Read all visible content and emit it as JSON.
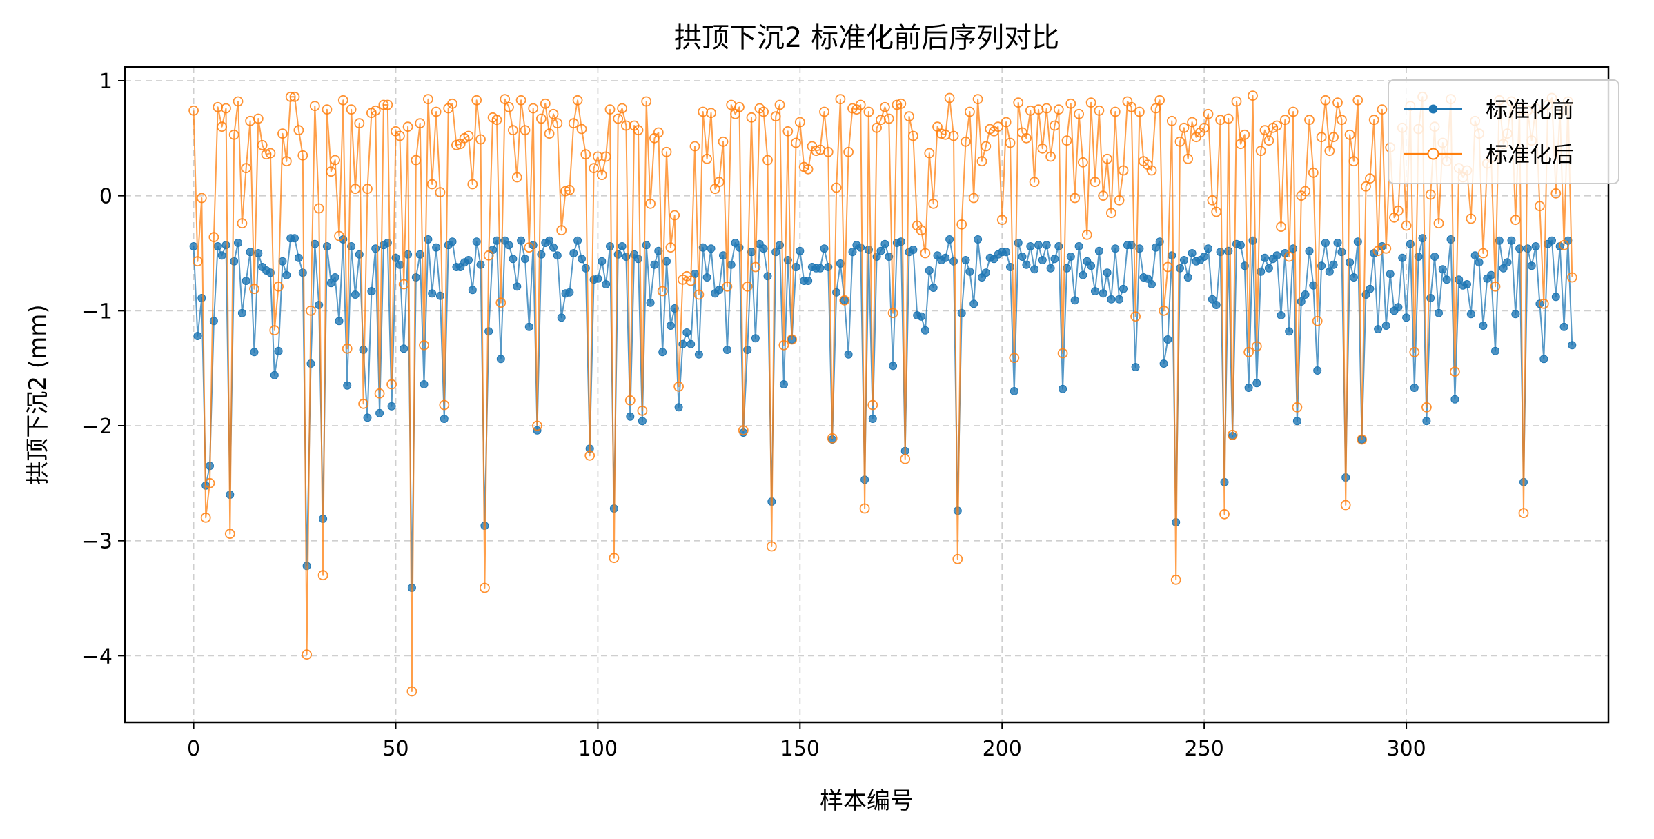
{
  "chart_data": {
    "type": "line",
    "title": "拱顶下沉2 标准化前后序列对比",
    "xlabel": "样本编号",
    "ylabel": "拱顶下沉2 (mm)",
    "xlim": [
      -17,
      350
    ],
    "ylim": [
      -4.58,
      1.12
    ],
    "xticks": [
      0,
      50,
      100,
      150,
      200,
      250,
      300
    ],
    "yticks": [
      -4,
      -3,
      -2,
      -1,
      0,
      1
    ],
    "grid": true,
    "legend_position": "top-right",
    "series": [
      {
        "name": "标准化前",
        "color": "#1f77b4",
        "marker": "filled-circle",
        "values": [
          -0.44,
          -1.22,
          -0.89,
          -2.52,
          -2.35,
          -1.09,
          -0.44,
          -0.52,
          -0.43,
          -2.6,
          -0.57,
          -0.41,
          -1.02,
          -0.74,
          -0.49,
          -1.36,
          -0.5,
          -0.62,
          -0.65,
          -0.67,
          -1.56,
          -1.35,
          -0.57,
          -0.69,
          -0.37,
          -0.37,
          -0.54,
          -0.67,
          -3.22,
          -1.46,
          -0.42,
          -0.95,
          -2.81,
          -0.44,
          -0.76,
          -0.71,
          -1.09,
          -0.38,
          -1.65,
          -0.44,
          -0.86,
          -0.51,
          -1.34,
          -1.93,
          -0.83,
          -0.46,
          -1.89,
          -0.43,
          -0.41,
          -1.83,
          -0.54,
          -0.6,
          -1.33,
          -0.51,
          -3.41,
          -0.71,
          -0.51,
          -1.64,
          -0.38,
          -0.85,
          -0.45,
          -0.87,
          -1.94,
          -0.43,
          -0.4,
          -0.62,
          -0.62,
          -0.58,
          -0.56,
          -0.82,
          -0.4,
          -0.6,
          -2.87,
          -1.18,
          -0.47,
          -0.39,
          -1.42,
          -0.39,
          -0.43,
          -0.55,
          -0.79,
          -0.39,
          -0.55,
          -1.14,
          -0.43,
          -2.04,
          -0.51,
          -0.41,
          -0.39,
          -0.45,
          -0.52,
          -1.06,
          -0.85,
          -0.84,
          -0.5,
          -0.39,
          -0.55,
          -0.63,
          -2.2,
          -0.73,
          -0.72,
          -0.57,
          -0.77,
          -0.44,
          -2.72,
          -0.51,
          -0.44,
          -0.53,
          -1.92,
          -0.51,
          -0.55,
          -1.96,
          -0.43,
          -0.93,
          -0.6,
          -0.48,
          -1.36,
          -0.57,
          -1.13,
          -0.98,
          -1.84,
          -1.29,
          -1.19,
          -1.29,
          -0.68,
          -1.38,
          -0.45,
          -0.71,
          -0.46,
          -0.85,
          -0.82,
          -0.52,
          -1.34,
          -0.6,
          -0.41,
          -0.45,
          -2.06,
          -1.34,
          -0.49,
          -1.24,
          -0.42,
          -0.46,
          -0.7,
          -2.66,
          -0.49,
          -0.43,
          -1.64,
          -0.56,
          -1.25,
          -0.62,
          -0.48,
          -0.74,
          -0.74,
          -0.62,
          -0.63,
          -0.63,
          -0.46,
          -0.62,
          -2.12,
          -0.84,
          -0.59,
          -0.91,
          -1.38,
          -0.49,
          -0.43,
          -0.45,
          -2.47,
          -0.47,
          -1.94,
          -0.53,
          -0.48,
          -0.42,
          -0.53,
          -1.48,
          -0.41,
          -0.4,
          -2.22,
          -0.49,
          -0.47,
          -1.04,
          -1.05,
          -1.17,
          -0.65,
          -0.8,
          -0.52,
          -0.56,
          -0.54,
          -0.38,
          -0.57,
          -2.74,
          -1.02,
          -0.56,
          -0.66,
          -0.94,
          -0.38,
          -0.71,
          -0.67,
          -0.54,
          -0.55,
          -0.51,
          -0.49,
          -0.49,
          -0.62,
          -1.7,
          -0.41,
          -0.53,
          -0.6,
          -0.44,
          -0.64,
          -0.43,
          -0.56,
          -0.43,
          -0.63,
          -0.55,
          -0.44,
          -1.68,
          -0.63,
          -0.53,
          -0.91,
          -0.44,
          -0.69,
          -0.57,
          -0.61,
          -0.83,
          -0.48,
          -0.85,
          -0.67,
          -0.9,
          -0.46,
          -0.9,
          -0.81,
          -0.43,
          -0.43,
          -1.49,
          -0.46,
          -0.71,
          -0.72,
          -0.77,
          -0.45,
          -0.4,
          -1.46,
          -1.25,
          -0.52,
          -2.84,
          -0.63,
          -0.56,
          -0.71,
          -0.5,
          -0.57,
          -0.56,
          -0.53,
          -0.46,
          -0.9,
          -0.95,
          -0.49,
          -2.49,
          -0.48,
          -2.09,
          -0.42,
          -0.43,
          -0.61,
          -1.67,
          -0.39,
          -1.63,
          -0.66,
          -0.54,
          -0.63,
          -0.55,
          -0.52,
          -1.04,
          -0.5,
          -1.18,
          -0.46,
          -1.96,
          -0.92,
          -0.86,
          -0.48,
          -0.78,
          -1.52,
          -0.61,
          -0.41,
          -0.66,
          -0.6,
          -0.41,
          -0.49,
          -2.45,
          -0.58,
          -0.71,
          -0.4,
          -2.12,
          -0.86,
          -0.81,
          -0.5,
          -1.16,
          -0.44,
          -1.13,
          -0.68,
          -1.0,
          -0.97,
          -0.54,
          -1.06,
          -0.42,
          -1.67,
          -0.53,
          -0.37,
          -1.96,
          -0.89,
          -0.53,
          -1.02,
          -0.64,
          -0.73,
          -0.38,
          -1.77,
          -0.73,
          -0.78,
          -0.77,
          -1.03,
          -0.52,
          -0.58,
          -1.13,
          -0.72,
          -0.69,
          -1.35,
          -0.39,
          -0.63,
          -0.58,
          -0.39,
          -1.03,
          -0.46,
          -2.49,
          -0.46,
          -0.61,
          -0.44,
          -0.94,
          -1.42,
          -0.42,
          -0.39,
          -0.88,
          -0.44,
          -1.14,
          -0.39,
          -1.3
        ]
      },
      {
        "name": "标准化后",
        "color": "#ff7f0e",
        "marker": "hollow-circle",
        "values": [
          0.74,
          -0.57,
          -0.02,
          -2.8,
          -2.5,
          -0.36,
          0.77,
          0.6,
          0.76,
          -2.94,
          0.53,
          0.82,
          -0.24,
          0.24,
          0.65,
          -0.81,
          0.67,
          0.44,
          0.36,
          0.37,
          -1.17,
          -0.79,
          0.54,
          0.3,
          0.86,
          0.86,
          0.57,
          0.35,
          -3.99,
          -1.0,
          0.78,
          -0.11,
          -3.3,
          0.75,
          0.21,
          0.31,
          -0.35,
          0.83,
          -1.33,
          0.75,
          0.06,
          0.63,
          -1.81,
          0.06,
          0.72,
          0.74,
          -1.72,
          0.79,
          0.79,
          -1.64,
          0.56,
          0.52,
          -0.77,
          0.6,
          -4.31,
          0.31,
          0.63,
          -1.3,
          0.84,
          0.1,
          0.73,
          0.03,
          -1.82,
          0.76,
          0.8,
          0.44,
          0.45,
          0.5,
          0.52,
          0.1,
          0.83,
          0.49,
          -3.41,
          -0.52,
          0.68,
          0.66,
          -0.93,
          0.84,
          0.77,
          0.57,
          0.16,
          0.83,
          0.57,
          -0.45,
          0.76,
          -2.0,
          0.67,
          0.8,
          0.54,
          0.71,
          0.63,
          -0.3,
          0.04,
          0.05,
          0.63,
          0.83,
          0.58,
          0.36,
          -2.26,
          0.24,
          0.34,
          0.18,
          0.34,
          0.75,
          -3.15,
          0.67,
          0.76,
          0.61,
          -1.78,
          0.61,
          0.57,
          -1.87,
          0.82,
          -0.07,
          0.5,
          0.55,
          -0.83,
          0.38,
          -0.45,
          -0.17,
          -1.66,
          -0.73,
          -0.7,
          -0.74,
          0.43,
          -0.86,
          0.73,
          0.32,
          0.72,
          0.06,
          0.12,
          0.47,
          -0.79,
          0.79,
          0.71,
          0.77,
          -2.04,
          -0.79,
          0.68,
          -0.62,
          0.76,
          0.73,
          0.31,
          -3.05,
          0.69,
          0.79,
          -1.3,
          0.56,
          -1.25,
          0.46,
          0.64,
          0.25,
          0.23,
          0.43,
          0.39,
          0.4,
          0.73,
          0.38,
          -2.11,
          0.07,
          0.84,
          -0.91,
          0.38,
          0.76,
          0.75,
          0.79,
          -2.72,
          0.73,
          -1.82,
          0.59,
          0.66,
          0.77,
          0.67,
          -1.02,
          0.79,
          0.8,
          -2.29,
          0.69,
          0.52,
          -0.26,
          -0.3,
          -0.5,
          0.37,
          -0.07,
          0.6,
          0.54,
          0.53,
          0.85,
          0.52,
          -3.16,
          -0.25,
          0.47,
          0.73,
          -0.02,
          0.84,
          0.3,
          0.43,
          0.58,
          0.56,
          0.6,
          -0.21,
          0.64,
          0.46,
          -1.41,
          0.81,
          0.55,
          0.5,
          0.74,
          0.12,
          0.75,
          0.41,
          0.76,
          0.34,
          0.61,
          0.75,
          -1.37,
          0.48,
          0.8,
          -0.02,
          0.71,
          0.29,
          -0.34,
          0.81,
          0.12,
          0.74,
          0.0,
          0.32,
          -0.15,
          0.73,
          -0.04,
          0.22,
          0.82,
          0.77,
          -1.05,
          0.73,
          0.3,
          0.27,
          0.22,
          0.76,
          0.83,
          -1.0,
          -0.62,
          0.65,
          -3.34,
          0.47,
          0.59,
          0.32,
          0.64,
          0.51,
          0.55,
          0.59,
          0.71,
          -0.04,
          -0.14,
          0.66,
          -2.77,
          0.67,
          -2.08,
          0.82,
          0.45,
          0.53,
          -1.36,
          0.87,
          -1.31,
          0.39,
          0.57,
          0.48,
          0.59,
          0.61,
          -0.27,
          0.66,
          -0.53,
          0.73,
          -1.84,
          0.0,
          0.04,
          0.66,
          0.2,
          -1.09,
          0.51,
          0.83,
          0.39,
          0.51,
          0.81,
          0.66,
          -2.69,
          0.53,
          0.3,
          0.83,
          -2.12,
          0.08,
          0.15,
          0.66,
          -0.48,
          0.75,
          -0.46,
          0.42,
          -0.19,
          -0.13,
          0.59,
          -0.26,
          0.78,
          -1.36,
          0.58,
          0.86,
          -1.84,
          0.01,
          0.6,
          -0.24,
          0.46,
          0.3,
          0.84,
          -1.53,
          0.24,
          0.16,
          0.22,
          -0.2,
          0.65,
          0.54,
          -0.5,
          0.28,
          0.33,
          -0.79,
          0.83,
          0.45,
          0.54,
          0.82,
          -0.21,
          0.75,
          -2.76,
          0.74,
          0.48,
          0.76,
          -0.09,
          -0.94,
          0.79,
          0.85,
          0.02,
          0.74,
          -0.43,
          0.82,
          -0.71
        ]
      }
    ]
  }
}
